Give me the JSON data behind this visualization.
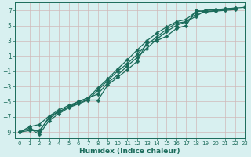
{
  "xlabel": "Humidex (Indice chaleur)",
  "xlim": [
    -0.5,
    23
  ],
  "ylim": [
    -9.8,
    8.0
  ],
  "yticks": [
    -9,
    -7,
    -5,
    -3,
    -1,
    1,
    3,
    5,
    7
  ],
  "xticks": [
    0,
    1,
    2,
    3,
    4,
    5,
    6,
    7,
    8,
    9,
    10,
    11,
    12,
    13,
    14,
    15,
    16,
    17,
    18,
    19,
    20,
    21,
    22,
    23
  ],
  "bg_color": "#d8f0f0",
  "grid_color": "#d0b8b8",
  "line_color": "#1a6b5a",
  "marker": "D",
  "markersize": 2.5,
  "linewidth": 0.9,
  "lines": [
    {
      "x": [
        0,
        1,
        2,
        3,
        4,
        5,
        6,
        7,
        8,
        9,
        10,
        11,
        12,
        13,
        14,
        15,
        16,
        17,
        18,
        19,
        20,
        21,
        22
      ],
      "y": [
        -9.0,
        -8.5,
        -9.3,
        -7.5,
        -6.6,
        -5.8,
        -5.3,
        -4.8,
        -4.8,
        -2.8,
        -1.8,
        -0.8,
        0.3,
        2.8,
        3.0,
        3.6,
        4.6,
        5.0,
        7.0,
        6.8,
        6.9,
        7.0,
        7.1
      ]
    },
    {
      "x": [
        0,
        1,
        2,
        3,
        4,
        5,
        6,
        7,
        8,
        9,
        10,
        11,
        12,
        13,
        14,
        15,
        16,
        17,
        18,
        19,
        20,
        21,
        22
      ],
      "y": [
        -9.0,
        -8.8,
        -8.8,
        -7.2,
        -6.4,
        -5.7,
        -5.2,
        -4.7,
        -3.5,
        -2.2,
        -1.0,
        0.0,
        1.2,
        2.5,
        3.5,
        4.5,
        5.3,
        5.5,
        6.5,
        6.8,
        7.0,
        7.1,
        7.2
      ]
    },
    {
      "x": [
        0,
        1,
        2,
        3,
        4,
        5,
        6,
        7,
        8,
        9,
        10,
        11,
        12,
        13,
        14,
        15,
        16,
        17,
        18,
        19,
        20,
        21,
        22
      ],
      "y": [
        -9.0,
        -8.3,
        -8.0,
        -6.9,
        -6.1,
        -5.5,
        -5.0,
        -4.5,
        -3.2,
        -2.0,
        -0.7,
        0.5,
        1.8,
        3.0,
        4.0,
        4.8,
        5.5,
        5.8,
        6.8,
        7.0,
        7.1,
        7.2,
        7.3
      ]
    },
    {
      "x": [
        1,
        2,
        3,
        4,
        5,
        6,
        7,
        8,
        9,
        10,
        11,
        12,
        13,
        14,
        15,
        16,
        17,
        18,
        19,
        20,
        21,
        22,
        23
      ],
      "y": [
        -8.5,
        -9.0,
        -7.0,
        -6.3,
        -5.7,
        -5.0,
        -4.5,
        -4.0,
        -2.5,
        -1.5,
        -0.3,
        0.8,
        2.0,
        3.2,
        4.2,
        5.0,
        5.5,
        6.2,
        7.0,
        7.1,
        7.2,
        7.3,
        7.4
      ]
    }
  ]
}
